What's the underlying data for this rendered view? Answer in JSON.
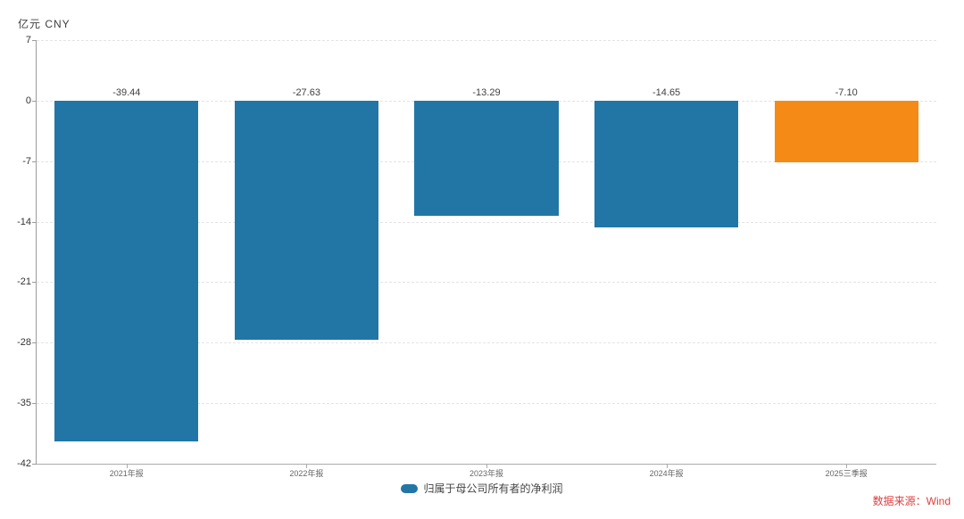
{
  "chart_data": {
    "type": "bar",
    "unit_label": "亿元  CNY",
    "categories": [
      "2021年报",
      "2022年报",
      "2023年报",
      "2024年报",
      "2025三季报"
    ],
    "series": [
      {
        "name": "归属于母公司所有者的净利润",
        "values": [
          -39.44,
          -27.63,
          -13.29,
          -14.65,
          -7.1
        ]
      }
    ],
    "value_labels": [
      "-39.44",
      "-27.63",
      "-13.29",
      "-14.65",
      "-7.10"
    ],
    "bar_colors": [
      "#2276a6",
      "#2276a6",
      "#2276a6",
      "#2276a6",
      "#f68a17"
    ],
    "ylim": [
      -42,
      7
    ],
    "yticks": [
      7,
      0,
      -7,
      -14,
      -21,
      -28,
      -35,
      -42
    ],
    "grid": "horizontal-dashed",
    "legend": {
      "label": "归属于母公司所有者的净利润",
      "swatch_color": "#2276a6",
      "position": "bottom-center"
    }
  },
  "footer": {
    "source_label": "数据来源：Wind",
    "source_color": "#e23d3d"
  }
}
